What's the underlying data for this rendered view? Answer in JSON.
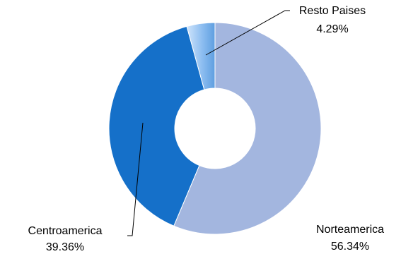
{
  "chart_data": {
    "type": "pie",
    "donut": true,
    "title": "",
    "labels": [
      "Norteamerica",
      "Centroamerica",
      "Resto Paises"
    ],
    "values": [
      56.34,
      39.36,
      4.29
    ],
    "value_labels": [
      "56.34%",
      "39.36%",
      "4.29%"
    ],
    "colors": [
      "#a3b6df",
      "#1570c9",
      "#8cbdf0"
    ],
    "legend": "none"
  }
}
